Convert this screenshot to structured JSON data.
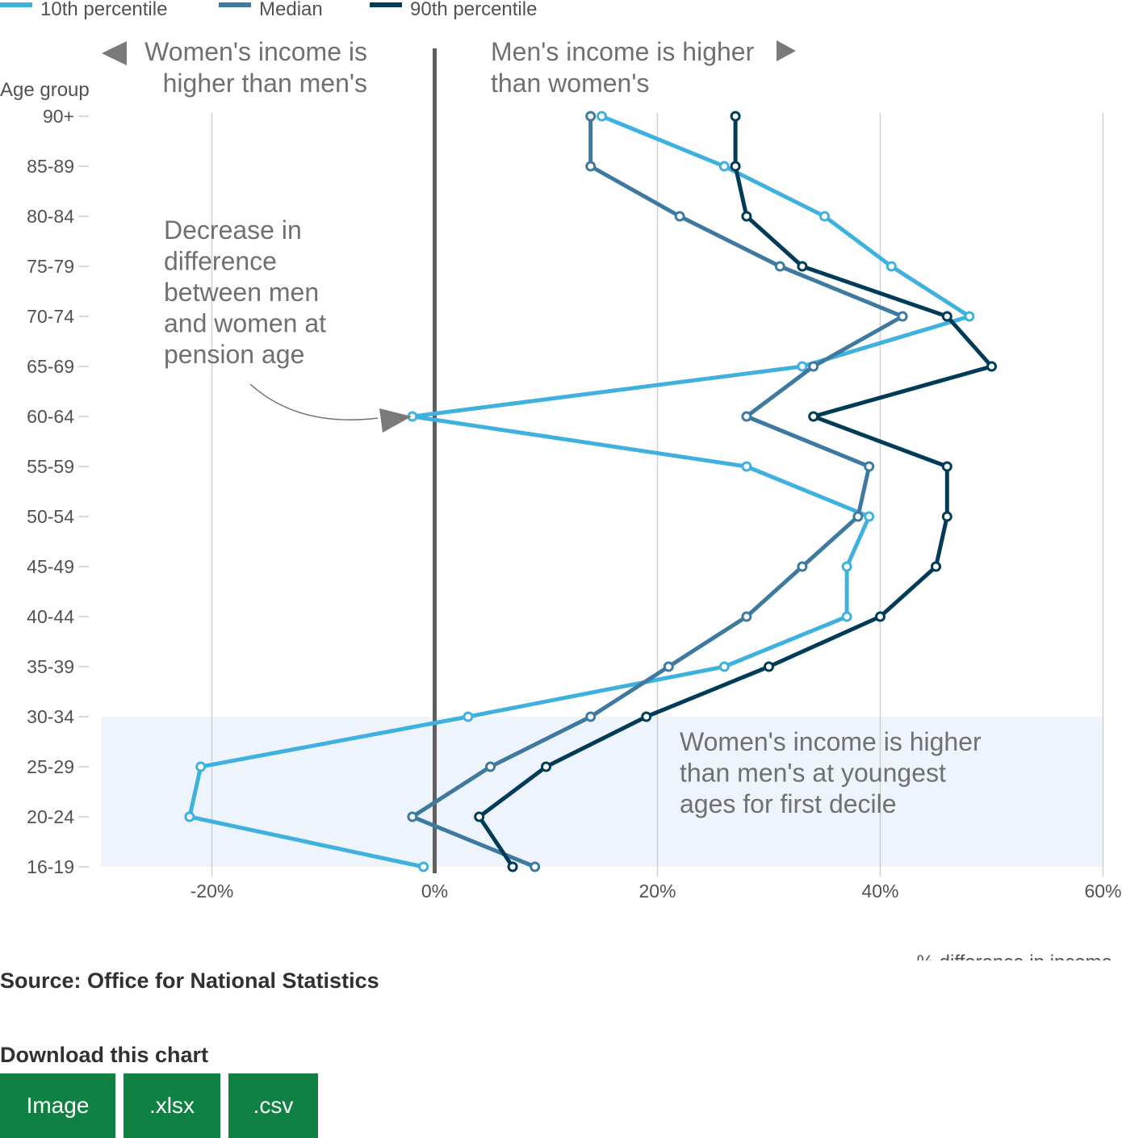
{
  "chart_data": {
    "type": "line",
    "orientation": "horizontal",
    "ylabel": "Age group",
    "xlabel": "% difference in income",
    "xlim": [
      -30,
      60
    ],
    "x_ticks": [
      -20,
      0,
      20,
      40,
      60
    ],
    "x_tick_labels": [
      "-20%",
      "0%",
      "20%",
      "40%",
      "60%"
    ],
    "grid": true,
    "legend_position": "top-left",
    "categories": [
      "16-19",
      "20-24",
      "25-29",
      "30-34",
      "35-39",
      "40-44",
      "45-49",
      "50-54",
      "55-59",
      "60-64",
      "65-69",
      "70-74",
      "75-79",
      "80-84",
      "85-89",
      "90+"
    ],
    "series": [
      {
        "name": "10th percentile",
        "color": "#3fb1de",
        "values": [
          -1,
          -22,
          -21,
          3,
          26,
          37,
          37,
          39,
          28,
          -2,
          33,
          48,
          41,
          35,
          26,
          15
        ]
      },
      {
        "name": "Median",
        "color": "#3e7aa0",
        "values": [
          9,
          -2,
          5,
          14,
          21,
          28,
          33,
          38,
          39,
          28,
          34,
          42,
          31,
          22,
          14,
          14
        ]
      },
      {
        "name": "90th percentile",
        "color": "#003c57",
        "values": [
          7,
          4,
          10,
          19,
          30,
          40,
          45,
          46,
          46,
          34,
          50,
          46,
          33,
          28,
          27,
          27
        ]
      }
    ],
    "annotations": {
      "left_direction": "Women's income is higher than men's",
      "right_direction": "Men's income is higher than women's",
      "pension_note": "Decrease in difference between men and women at pension age",
      "youngest_note": "Women's income is higher than men's at youngest ages for first decile",
      "highlight_from": "16-19",
      "highlight_to": "30-34"
    }
  },
  "colors": {
    "zero_line": "#5f5f5f",
    "grid": "#d0d0d0",
    "highlight": "#edf4fc",
    "annotation_text": "#707071",
    "axis_text": "#525252",
    "button": "#0f8243"
  },
  "source": "Source: Office for National Statistics",
  "download": {
    "title": "Download this chart",
    "buttons": [
      "Image",
      ".xlsx",
      ".csv"
    ]
  }
}
